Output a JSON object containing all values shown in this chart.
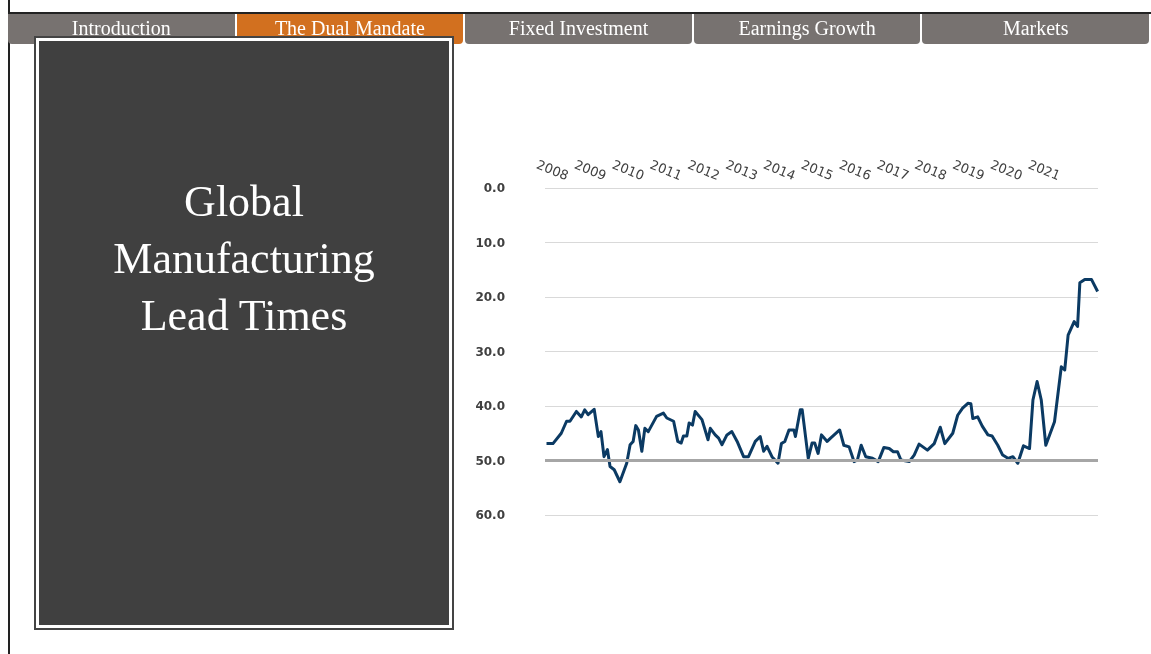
{
  "chart_data": {
    "type": "line",
    "title": "Global Manufacturing Lead Times",
    "annotations": [
      "Introduction",
      "The Dual Mandate",
      "Fixed Investment",
      "Earnings Growth",
      "Markets"
    ],
    "x": [
      2007.84,
      2008.01,
      2008.23,
      2008.37,
      2008.46,
      2008.63,
      2008.76,
      2008.85,
      2008.94,
      2009.1,
      2009.21,
      2009.28,
      2009.36,
      2009.45,
      2009.52,
      2009.63,
      2009.78,
      2009.96,
      2010.05,
      2010.13,
      2010.2,
      2010.27,
      2010.36,
      2010.44,
      2010.53,
      2010.75,
      2010.93,
      2011.02,
      2011.2,
      2011.31,
      2011.4,
      2011.46,
      2011.55,
      2011.61,
      2011.7,
      2011.77,
      2011.95,
      2012.11,
      2012.17,
      2012.3,
      2012.39,
      2012.48,
      2012.61,
      2012.74,
      2012.88,
      2013.05,
      2013.18,
      2013.36,
      2013.49,
      2013.58,
      2013.67,
      2013.8,
      2013.96,
      2014.05,
      2014.14,
      2014.25,
      2014.38,
      2014.42,
      2014.55,
      2014.6,
      2014.76,
      2014.86,
      2014.93,
      2015.02,
      2015.11,
      2015.26,
      2015.35,
      2015.59,
      2015.7,
      2015.84,
      2015.97,
      2016.06,
      2016.16,
      2016.28,
      2016.46,
      2016.61,
      2016.76,
      2016.9,
      2017.01,
      2017.12,
      2017.21,
      2017.43,
      2017.56,
      2017.69,
      2017.91,
      2018.09,
      2018.25,
      2018.37,
      2018.58,
      2018.71,
      2018.84,
      2018.98,
      2019.06,
      2019.11,
      2019.24,
      2019.36,
      2019.51,
      2019.62,
      2019.77,
      2019.9,
      2020.04,
      2020.17,
      2020.3,
      2020.45,
      2020.61,
      2020.7,
      2020.81,
      2020.92,
      2021.04,
      2021.27,
      2021.45,
      2021.54,
      2021.63,
      2021.79,
      2021.88,
      2021.94,
      2022.07,
      2022.25,
      2022.41
    ],
    "series": [
      {
        "color": "#0b3a63",
        "values": [
          46.9,
          46.9,
          45.0,
          42.8,
          42.8,
          41.0,
          42.0,
          40.7,
          41.6,
          40.6,
          45.6,
          44.7,
          49.3,
          48.0,
          51.1,
          51.7,
          53.9,
          50.5,
          47.1,
          46.5,
          43.6,
          44.4,
          48.3,
          44.1,
          44.7,
          41.9,
          41.3,
          42.2,
          42.8,
          46.5,
          46.8,
          45.5,
          45.5,
          43.1,
          43.5,
          41.0,
          42.5,
          46.2,
          44.1,
          45.3,
          45.9,
          47.1,
          45.3,
          44.7,
          46.5,
          49.3,
          49.3,
          46.5,
          45.6,
          48.3,
          47.4,
          49.3,
          50.5,
          46.9,
          46.5,
          44.4,
          44.4,
          45.6,
          40.7,
          40.7,
          49.6,
          46.8,
          46.8,
          48.7,
          45.3,
          46.5,
          45.9,
          44.4,
          47.2,
          47.5,
          50.2,
          49.9,
          47.2,
          49.3,
          49.6,
          50.2,
          47.6,
          47.8,
          48.4,
          48.4,
          49.9,
          50.2,
          49.0,
          47.0,
          48.1,
          46.9,
          43.9,
          46.9,
          45.0,
          41.7,
          40.4,
          39.5,
          39.6,
          42.3,
          42.0,
          43.7,
          45.3,
          45.5,
          47.2,
          49.0,
          49.6,
          49.3,
          50.5,
          47.3,
          47.8,
          38.9,
          35.5,
          38.9,
          47.2,
          42.9,
          32.8,
          33.4,
          27.0,
          24.5,
          25.4,
          17.4,
          16.8,
          16.8,
          19.0
        ]
      }
    ],
    "xlim": [
      2007.8,
      2022.42
    ],
    "xticks": [
      2008,
      2009,
      2010,
      2011,
      2012,
      2013,
      2014,
      2015,
      2016,
      2017,
      2018,
      2019,
      2020,
      2021
    ],
    "ylim": [
      60,
      0
    ],
    "yticks": [
      {
        "value": 0,
        "label": "0.0"
      },
      {
        "value": 10,
        "label": "10.0"
      },
      {
        "value": 20,
        "label": "20.0"
      },
      {
        "value": 30,
        "label": "30.0"
      },
      {
        "value": 40,
        "label": "40.0"
      },
      {
        "value": 50,
        "label": "50.0"
      },
      {
        "value": 60,
        "label": "60.0"
      }
    ],
    "ref_lines": [
      {
        "axis": "y",
        "value": 50,
        "color": "#a6a6a6"
      }
    ],
    "grid": "y",
    "marker": "none",
    "line_style": "solid"
  }
}
